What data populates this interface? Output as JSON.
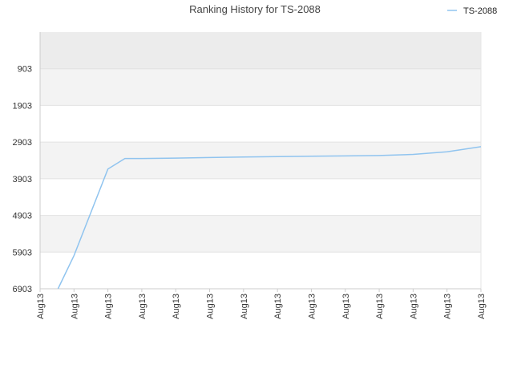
{
  "chart_data": {
    "type": "line",
    "title": "Ranking History for TS-2088",
    "xlabel": "",
    "ylabel": "",
    "y_reversed": true,
    "ylim": [
      6903,
      -97
    ],
    "y_ticks": [
      "903",
      "1903",
      "2903",
      "3903",
      "4903",
      "5903",
      "6903"
    ],
    "y_tick_values": [
      903,
      1903,
      2903,
      3903,
      4903,
      5903,
      6903
    ],
    "x_ticks": [
      "Aug13",
      "Aug13",
      "Aug13",
      "Aug13",
      "Aug13",
      "Aug13",
      "Aug13",
      "Aug13",
      "Aug13",
      "Aug13",
      "Aug13",
      "Aug13",
      "Aug13",
      "Aug13"
    ],
    "grid": true,
    "legend_position": "top-right",
    "series": [
      {
        "name": "TS-2088",
        "color": "#90c4ef",
        "x": [
          0.53,
          1.0,
          2.0,
          2.5,
          3.0,
          4.0,
          5.0,
          6.0,
          7.0,
          8.0,
          9.0,
          10.0,
          11.0,
          12.0,
          13.0
        ],
        "values": [
          6903,
          6000,
          3640,
          3350,
          3350,
          3340,
          3325,
          3310,
          3300,
          3290,
          3280,
          3270,
          3240,
          3170,
          3030
        ]
      }
    ]
  },
  "colors": {
    "band_dark": "#ececec",
    "band_light": "#f3f3f3",
    "band_white": "#ffffff",
    "axis": "#cccccc"
  }
}
